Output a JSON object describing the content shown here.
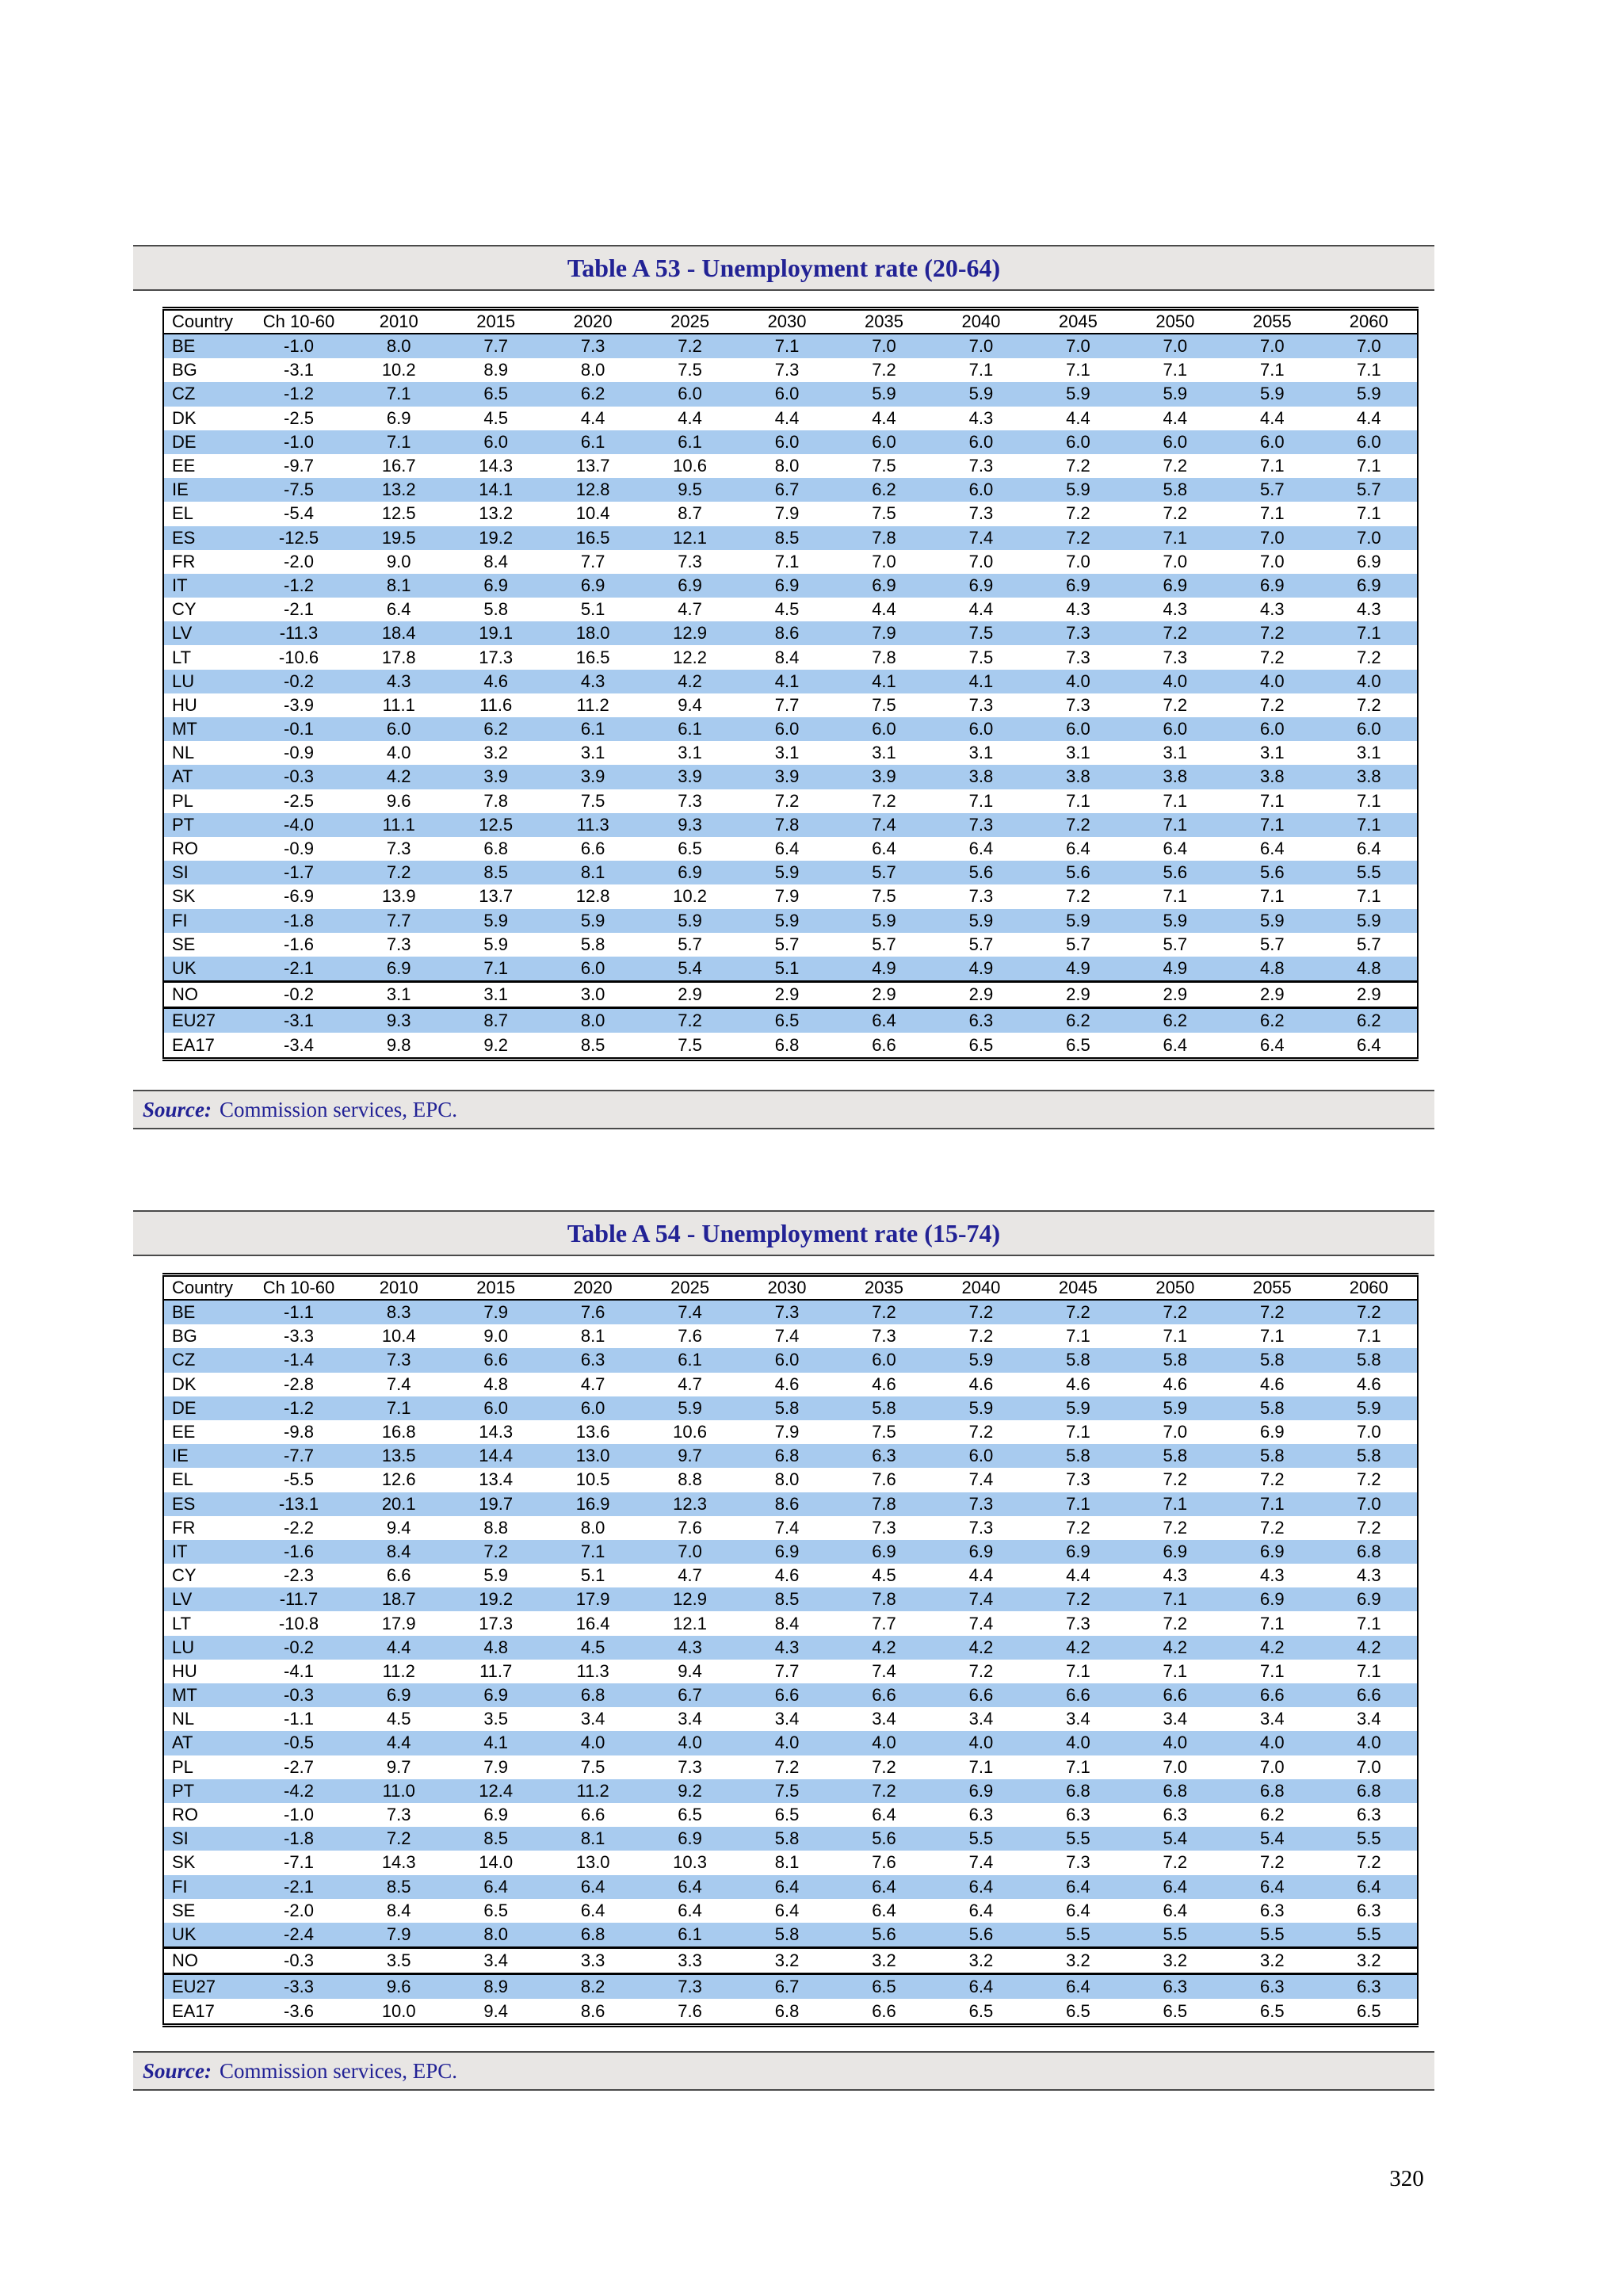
{
  "page": {
    "number": "320"
  },
  "colors": {
    "stripe": "#a8cbef",
    "title_text": "#222295",
    "bar_bg": "#e8e6e4"
  },
  "tables": [
    {
      "title": "Table A 53 - Unemployment rate (20-64)",
      "source_label": "Source:",
      "source_text": "Commission services, EPC.",
      "columns": [
        "Country",
        "Ch 10-60",
        "2010",
        "2015",
        "2020",
        "2025",
        "2030",
        "2035",
        "2040",
        "2045",
        "2050",
        "2055",
        "2060"
      ],
      "rows": [
        {
          "country": "BE",
          "values": [
            "-1.0",
            "8.0",
            "7.7",
            "7.3",
            "7.2",
            "7.1",
            "7.0",
            "7.0",
            "7.0",
            "7.0",
            "7.0",
            "7.0"
          ]
        },
        {
          "country": "BG",
          "values": [
            "-3.1",
            "10.2",
            "8.9",
            "8.0",
            "7.5",
            "7.3",
            "7.2",
            "7.1",
            "7.1",
            "7.1",
            "7.1",
            "7.1"
          ]
        },
        {
          "country": "CZ",
          "values": [
            "-1.2",
            "7.1",
            "6.5",
            "6.2",
            "6.0",
            "6.0",
            "5.9",
            "5.9",
            "5.9",
            "5.9",
            "5.9",
            "5.9"
          ]
        },
        {
          "country": "DK",
          "values": [
            "-2.5",
            "6.9",
            "4.5",
            "4.4",
            "4.4",
            "4.4",
            "4.4",
            "4.3",
            "4.4",
            "4.4",
            "4.4",
            "4.4"
          ]
        },
        {
          "country": "DE",
          "values": [
            "-1.0",
            "7.1",
            "6.0",
            "6.1",
            "6.1",
            "6.0",
            "6.0",
            "6.0",
            "6.0",
            "6.0",
            "6.0",
            "6.0"
          ]
        },
        {
          "country": "EE",
          "values": [
            "-9.7",
            "16.7",
            "14.3",
            "13.7",
            "10.6",
            "8.0",
            "7.5",
            "7.3",
            "7.2",
            "7.2",
            "7.1",
            "7.1"
          ]
        },
        {
          "country": "IE",
          "values": [
            "-7.5",
            "13.2",
            "14.1",
            "12.8",
            "9.5",
            "6.7",
            "6.2",
            "6.0",
            "5.9",
            "5.8",
            "5.7",
            "5.7"
          ]
        },
        {
          "country": "EL",
          "values": [
            "-5.4",
            "12.5",
            "13.2",
            "10.4",
            "8.7",
            "7.9",
            "7.5",
            "7.3",
            "7.2",
            "7.2",
            "7.1",
            "7.1"
          ]
        },
        {
          "country": "ES",
          "values": [
            "-12.5",
            "19.5",
            "19.2",
            "16.5",
            "12.1",
            "8.5",
            "7.8",
            "7.4",
            "7.2",
            "7.1",
            "7.0",
            "7.0"
          ]
        },
        {
          "country": "FR",
          "values": [
            "-2.0",
            "9.0",
            "8.4",
            "7.7",
            "7.3",
            "7.1",
            "7.0",
            "7.0",
            "7.0",
            "7.0",
            "7.0",
            "6.9"
          ]
        },
        {
          "country": "IT",
          "values": [
            "-1.2",
            "8.1",
            "6.9",
            "6.9",
            "6.9",
            "6.9",
            "6.9",
            "6.9",
            "6.9",
            "6.9",
            "6.9",
            "6.9"
          ]
        },
        {
          "country": "CY",
          "values": [
            "-2.1",
            "6.4",
            "5.8",
            "5.1",
            "4.7",
            "4.5",
            "4.4",
            "4.4",
            "4.3",
            "4.3",
            "4.3",
            "4.3"
          ]
        },
        {
          "country": "LV",
          "values": [
            "-11.3",
            "18.4",
            "19.1",
            "18.0",
            "12.9",
            "8.6",
            "7.9",
            "7.5",
            "7.3",
            "7.2",
            "7.2",
            "7.1"
          ]
        },
        {
          "country": "LT",
          "values": [
            "-10.6",
            "17.8",
            "17.3",
            "16.5",
            "12.2",
            "8.4",
            "7.8",
            "7.5",
            "7.3",
            "7.3",
            "7.2",
            "7.2"
          ]
        },
        {
          "country": "LU",
          "values": [
            "-0.2",
            "4.3",
            "4.6",
            "4.3",
            "4.2",
            "4.1",
            "4.1",
            "4.1",
            "4.0",
            "4.0",
            "4.0",
            "4.0"
          ]
        },
        {
          "country": "HU",
          "values": [
            "-3.9",
            "11.1",
            "11.6",
            "11.2",
            "9.4",
            "7.7",
            "7.5",
            "7.3",
            "7.3",
            "7.2",
            "7.2",
            "7.2"
          ]
        },
        {
          "country": "MT",
          "values": [
            "-0.1",
            "6.0",
            "6.2",
            "6.1",
            "6.1",
            "6.0",
            "6.0",
            "6.0",
            "6.0",
            "6.0",
            "6.0",
            "6.0"
          ]
        },
        {
          "country": "NL",
          "values": [
            "-0.9",
            "4.0",
            "3.2",
            "3.1",
            "3.1",
            "3.1",
            "3.1",
            "3.1",
            "3.1",
            "3.1",
            "3.1",
            "3.1"
          ]
        },
        {
          "country": "AT",
          "values": [
            "-0.3",
            "4.2",
            "3.9",
            "3.9",
            "3.9",
            "3.9",
            "3.9",
            "3.8",
            "3.8",
            "3.8",
            "3.8",
            "3.8"
          ]
        },
        {
          "country": "PL",
          "values": [
            "-2.5",
            "9.6",
            "7.8",
            "7.5",
            "7.3",
            "7.2",
            "7.2",
            "7.1",
            "7.1",
            "7.1",
            "7.1",
            "7.1"
          ]
        },
        {
          "country": "PT",
          "values": [
            "-4.0",
            "11.1",
            "12.5",
            "11.3",
            "9.3",
            "7.8",
            "7.4",
            "7.3",
            "7.2",
            "7.1",
            "7.1",
            "7.1"
          ]
        },
        {
          "country": "RO",
          "values": [
            "-0.9",
            "7.3",
            "6.8",
            "6.6",
            "6.5",
            "6.4",
            "6.4",
            "6.4",
            "6.4",
            "6.4",
            "6.4",
            "6.4"
          ]
        },
        {
          "country": "SI",
          "values": [
            "-1.7",
            "7.2",
            "8.5",
            "8.1",
            "6.9",
            "5.9",
            "5.7",
            "5.6",
            "5.6",
            "5.6",
            "5.6",
            "5.5"
          ]
        },
        {
          "country": "SK",
          "values": [
            "-6.9",
            "13.9",
            "13.7",
            "12.8",
            "10.2",
            "7.9",
            "7.5",
            "7.3",
            "7.2",
            "7.1",
            "7.1",
            "7.1"
          ]
        },
        {
          "country": "FI",
          "values": [
            "-1.8",
            "7.7",
            "5.9",
            "5.9",
            "5.9",
            "5.9",
            "5.9",
            "5.9",
            "5.9",
            "5.9",
            "5.9",
            "5.9"
          ]
        },
        {
          "country": "SE",
          "values": [
            "-1.6",
            "7.3",
            "5.9",
            "5.8",
            "5.7",
            "5.7",
            "5.7",
            "5.7",
            "5.7",
            "5.7",
            "5.7",
            "5.7"
          ]
        },
        {
          "country": "UK",
          "values": [
            "-2.1",
            "6.9",
            "7.1",
            "6.0",
            "5.4",
            "5.1",
            "4.9",
            "4.9",
            "4.9",
            "4.9",
            "4.8",
            "4.8"
          ]
        },
        {
          "country": "NO",
          "sep": true,
          "values": [
            "-0.2",
            "3.1",
            "3.1",
            "3.0",
            "2.9",
            "2.9",
            "2.9",
            "2.9",
            "2.9",
            "2.9",
            "2.9",
            "2.9"
          ]
        },
        {
          "country": "EU27",
          "sep": true,
          "values": [
            "-3.1",
            "9.3",
            "8.7",
            "8.0",
            "7.2",
            "6.5",
            "6.4",
            "6.3",
            "6.2",
            "6.2",
            "6.2",
            "6.2"
          ]
        },
        {
          "country": "EA17",
          "values": [
            "-3.4",
            "9.8",
            "9.2",
            "8.5",
            "7.5",
            "6.8",
            "6.6",
            "6.5",
            "6.5",
            "6.4",
            "6.4",
            "6.4"
          ]
        }
      ]
    },
    {
      "title": "Table A 54 - Unemployment rate (15-74)",
      "source_label": "Source:",
      "source_text": "Commission services, EPC.",
      "columns": [
        "Country",
        "Ch 10-60",
        "2010",
        "2015",
        "2020",
        "2025",
        "2030",
        "2035",
        "2040",
        "2045",
        "2050",
        "2055",
        "2060"
      ],
      "rows": [
        {
          "country": "BE",
          "values": [
            "-1.1",
            "8.3",
            "7.9",
            "7.6",
            "7.4",
            "7.3",
            "7.2",
            "7.2",
            "7.2",
            "7.2",
            "7.2",
            "7.2"
          ]
        },
        {
          "country": "BG",
          "values": [
            "-3.3",
            "10.4",
            "9.0",
            "8.1",
            "7.6",
            "7.4",
            "7.3",
            "7.2",
            "7.1",
            "7.1",
            "7.1",
            "7.1"
          ]
        },
        {
          "country": "CZ",
          "values": [
            "-1.4",
            "7.3",
            "6.6",
            "6.3",
            "6.1",
            "6.0",
            "6.0",
            "5.9",
            "5.8",
            "5.8",
            "5.8",
            "5.8"
          ]
        },
        {
          "country": "DK",
          "values": [
            "-2.8",
            "7.4",
            "4.8",
            "4.7",
            "4.7",
            "4.6",
            "4.6",
            "4.6",
            "4.6",
            "4.6",
            "4.6",
            "4.6"
          ]
        },
        {
          "country": "DE",
          "values": [
            "-1.2",
            "7.1",
            "6.0",
            "6.0",
            "5.9",
            "5.8",
            "5.8",
            "5.9",
            "5.9",
            "5.9",
            "5.8",
            "5.9"
          ]
        },
        {
          "country": "EE",
          "values": [
            "-9.8",
            "16.8",
            "14.3",
            "13.6",
            "10.6",
            "7.9",
            "7.5",
            "7.2",
            "7.1",
            "7.0",
            "6.9",
            "7.0"
          ]
        },
        {
          "country": "IE",
          "values": [
            "-7.7",
            "13.5",
            "14.4",
            "13.0",
            "9.7",
            "6.8",
            "6.3",
            "6.0",
            "5.8",
            "5.8",
            "5.8",
            "5.8"
          ]
        },
        {
          "country": "EL",
          "values": [
            "-5.5",
            "12.6",
            "13.4",
            "10.5",
            "8.8",
            "8.0",
            "7.6",
            "7.4",
            "7.3",
            "7.2",
            "7.2",
            "7.2"
          ]
        },
        {
          "country": "ES",
          "values": [
            "-13.1",
            "20.1",
            "19.7",
            "16.9",
            "12.3",
            "8.6",
            "7.8",
            "7.3",
            "7.1",
            "7.1",
            "7.1",
            "7.0"
          ]
        },
        {
          "country": "FR",
          "values": [
            "-2.2",
            "9.4",
            "8.8",
            "8.0",
            "7.6",
            "7.4",
            "7.3",
            "7.3",
            "7.2",
            "7.2",
            "7.2",
            "7.2"
          ]
        },
        {
          "country": "IT",
          "values": [
            "-1.6",
            "8.4",
            "7.2",
            "7.1",
            "7.0",
            "6.9",
            "6.9",
            "6.9",
            "6.9",
            "6.9",
            "6.9",
            "6.8"
          ]
        },
        {
          "country": "CY",
          "values": [
            "-2.3",
            "6.6",
            "5.9",
            "5.1",
            "4.7",
            "4.6",
            "4.5",
            "4.4",
            "4.4",
            "4.3",
            "4.3",
            "4.3"
          ]
        },
        {
          "country": "LV",
          "values": [
            "-11.7",
            "18.7",
            "19.2",
            "17.9",
            "12.9",
            "8.5",
            "7.8",
            "7.4",
            "7.2",
            "7.1",
            "6.9",
            "6.9"
          ]
        },
        {
          "country": "LT",
          "values": [
            "-10.8",
            "17.9",
            "17.3",
            "16.4",
            "12.1",
            "8.4",
            "7.7",
            "7.4",
            "7.3",
            "7.2",
            "7.1",
            "7.1"
          ]
        },
        {
          "country": "LU",
          "values": [
            "-0.2",
            "4.4",
            "4.8",
            "4.5",
            "4.3",
            "4.3",
            "4.2",
            "4.2",
            "4.2",
            "4.2",
            "4.2",
            "4.2"
          ]
        },
        {
          "country": "HU",
          "values": [
            "-4.1",
            "11.2",
            "11.7",
            "11.3",
            "9.4",
            "7.7",
            "7.4",
            "7.2",
            "7.1",
            "7.1",
            "7.1",
            "7.1"
          ]
        },
        {
          "country": "MT",
          "values": [
            "-0.3",
            "6.9",
            "6.9",
            "6.8",
            "6.7",
            "6.6",
            "6.6",
            "6.6",
            "6.6",
            "6.6",
            "6.6",
            "6.6"
          ]
        },
        {
          "country": "NL",
          "values": [
            "-1.1",
            "4.5",
            "3.5",
            "3.4",
            "3.4",
            "3.4",
            "3.4",
            "3.4",
            "3.4",
            "3.4",
            "3.4",
            "3.4"
          ]
        },
        {
          "country": "AT",
          "values": [
            "-0.5",
            "4.4",
            "4.1",
            "4.0",
            "4.0",
            "4.0",
            "4.0",
            "4.0",
            "4.0",
            "4.0",
            "4.0",
            "4.0"
          ]
        },
        {
          "country": "PL",
          "values": [
            "-2.7",
            "9.7",
            "7.9",
            "7.5",
            "7.3",
            "7.2",
            "7.2",
            "7.1",
            "7.1",
            "7.0",
            "7.0",
            "7.0"
          ]
        },
        {
          "country": "PT",
          "values": [
            "-4.2",
            "11.0",
            "12.4",
            "11.2",
            "9.2",
            "7.5",
            "7.2",
            "6.9",
            "6.8",
            "6.8",
            "6.8",
            "6.8"
          ]
        },
        {
          "country": "RO",
          "values": [
            "-1.0",
            "7.3",
            "6.9",
            "6.6",
            "6.5",
            "6.5",
            "6.4",
            "6.3",
            "6.3",
            "6.3",
            "6.2",
            "6.3"
          ]
        },
        {
          "country": "SI",
          "values": [
            "-1.8",
            "7.2",
            "8.5",
            "8.1",
            "6.9",
            "5.8",
            "5.6",
            "5.5",
            "5.5",
            "5.4",
            "5.4",
            "5.5"
          ]
        },
        {
          "country": "SK",
          "values": [
            "-7.1",
            "14.3",
            "14.0",
            "13.0",
            "10.3",
            "8.1",
            "7.6",
            "7.4",
            "7.3",
            "7.2",
            "7.2",
            "7.2"
          ]
        },
        {
          "country": "FI",
          "values": [
            "-2.1",
            "8.5",
            "6.4",
            "6.4",
            "6.4",
            "6.4",
            "6.4",
            "6.4",
            "6.4",
            "6.4",
            "6.4",
            "6.4"
          ]
        },
        {
          "country": "SE",
          "values": [
            "-2.0",
            "8.4",
            "6.5",
            "6.4",
            "6.4",
            "6.4",
            "6.4",
            "6.4",
            "6.4",
            "6.4",
            "6.3",
            "6.3"
          ]
        },
        {
          "country": "UK",
          "values": [
            "-2.4",
            "7.9",
            "8.0",
            "6.8",
            "6.1",
            "5.8",
            "5.6",
            "5.6",
            "5.5",
            "5.5",
            "5.5",
            "5.5"
          ]
        },
        {
          "country": "NO",
          "sep": true,
          "values": [
            "-0.3",
            "3.5",
            "3.4",
            "3.3",
            "3.3",
            "3.2",
            "3.2",
            "3.2",
            "3.2",
            "3.2",
            "3.2",
            "3.2"
          ]
        },
        {
          "country": "EU27",
          "sep": true,
          "values": [
            "-3.3",
            "9.6",
            "8.9",
            "8.2",
            "7.3",
            "6.7",
            "6.5",
            "6.4",
            "6.4",
            "6.3",
            "6.3",
            "6.3"
          ]
        },
        {
          "country": "EA17",
          "values": [
            "-3.6",
            "10.0",
            "9.4",
            "8.6",
            "7.6",
            "6.8",
            "6.6",
            "6.5",
            "6.5",
            "6.5",
            "6.5",
            "6.5"
          ]
        }
      ]
    }
  ]
}
